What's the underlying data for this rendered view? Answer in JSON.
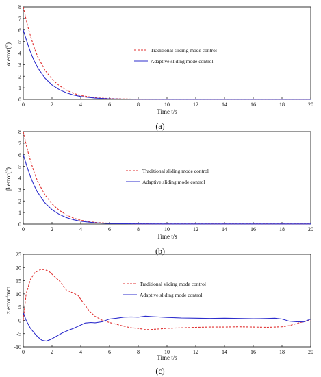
{
  "chart_data": [
    {
      "type": "line",
      "ylabel": "α error(°)",
      "xlabel": "Time t/s",
      "caption": "(a)",
      "xlim": [
        0,
        20
      ],
      "ylim": [
        0,
        8
      ],
      "xticks": [
        0,
        2,
        4,
        6,
        8,
        10,
        12,
        14,
        16,
        18,
        20
      ],
      "yticks": [
        0,
        1,
        2,
        3,
        4,
        5,
        6,
        7,
        8
      ],
      "legend_position": "center",
      "series": [
        {
          "name": "Traditional sliding mode control",
          "color": "#e03030",
          "dash": "dashed",
          "x": [
            0,
            0.25,
            0.5,
            0.75,
            1,
            1.5,
            2,
            2.5,
            3,
            3.5,
            4,
            5,
            6,
            7,
            8,
            10,
            12,
            14,
            16,
            18,
            20
          ],
          "y": [
            8,
            6.6,
            5.5,
            4.5,
            3.7,
            2.55,
            1.75,
            1.2,
            0.8,
            0.52,
            0.34,
            0.15,
            0.07,
            0.04,
            0.02,
            0.01,
            0.01,
            0.01,
            0.01,
            0.01,
            0.01
          ]
        },
        {
          "name": "Adaptive sliding mode control",
          "color": "#2c2ccc",
          "dash": "solid",
          "x": [
            0,
            0.25,
            0.5,
            0.75,
            1,
            1.5,
            2,
            2.5,
            3,
            3.5,
            4,
            5,
            6,
            7,
            8,
            10,
            12,
            14,
            16,
            18,
            20
          ],
          "y": [
            6,
            5.0,
            4.1,
            3.35,
            2.75,
            1.85,
            1.25,
            0.85,
            0.57,
            0.38,
            0.25,
            0.11,
            0.05,
            0.03,
            0.02,
            0.01,
            0.01,
            0.01,
            0.01,
            0.01,
            0.01
          ]
        }
      ]
    },
    {
      "type": "line",
      "ylabel": "β error(°)",
      "xlabel": "Time t/s",
      "caption": "(b)",
      "xlim": [
        0,
        20
      ],
      "ylim": [
        0,
        8
      ],
      "xticks": [
        0,
        2,
        4,
        6,
        8,
        10,
        12,
        14,
        16,
        18,
        20
      ],
      "yticks": [
        0,
        1,
        2,
        3,
        4,
        5,
        6,
        7,
        8
      ],
      "legend_position": "center",
      "series": [
        {
          "name": "Traditional sliding mode control",
          "color": "#e03030",
          "dash": "dashed",
          "x": [
            0,
            0.25,
            0.5,
            0.75,
            1,
            1.5,
            2,
            2.5,
            3,
            3.5,
            4,
            5,
            6,
            7,
            8,
            10,
            12,
            14,
            16,
            18,
            20
          ],
          "y": [
            8,
            6.6,
            5.5,
            4.5,
            3.7,
            2.55,
            1.75,
            1.2,
            0.8,
            0.52,
            0.34,
            0.15,
            0.07,
            0.04,
            0.02,
            0.01,
            0.01,
            0.01,
            0.01,
            0.01,
            0.01
          ]
        },
        {
          "name": "Adaptive sliding mode control",
          "color": "#2c2ccc",
          "dash": "solid",
          "x": [
            0,
            0.25,
            0.5,
            0.75,
            1,
            1.5,
            2,
            2.5,
            3,
            3.5,
            4,
            5,
            6,
            7,
            8,
            10,
            12,
            14,
            16,
            18,
            20
          ],
          "y": [
            6,
            5.0,
            4.1,
            3.35,
            2.75,
            1.85,
            1.25,
            0.85,
            0.57,
            0.38,
            0.25,
            0.11,
            0.05,
            0.03,
            0.02,
            0.01,
            0.01,
            0.01,
            0.01,
            0.01,
            0.01
          ]
        }
      ]
    },
    {
      "type": "line",
      "ylabel": "z error/mm",
      "xlabel": "Time t/s",
      "caption": "(c)",
      "xlim": [
        0,
        20
      ],
      "ylim": [
        -10,
        25
      ],
      "xticks": [
        0,
        2,
        4,
        6,
        8,
        10,
        12,
        14,
        16,
        18,
        20
      ],
      "yticks": [
        -10,
        -5,
        0,
        5,
        10,
        15,
        20,
        25
      ],
      "legend_position": "center-right",
      "series": [
        {
          "name": "Traditional sliding mode control",
          "color": "#e03030",
          "dash": "dashed",
          "x": [
            0,
            0.2,
            0.5,
            0.8,
            1.2,
            1.5,
            1.8,
            2.2,
            2.6,
            3.0,
            3.4,
            3.8,
            4.2,
            4.6,
            5.0,
            5.5,
            6.0,
            6.5,
            7.0,
            7.5,
            8.0,
            8.5,
            9.0,
            10,
            11,
            12,
            13,
            14,
            15,
            16,
            17,
            18,
            18.5,
            19,
            19.5,
            20
          ],
          "y": [
            0,
            10,
            15.5,
            18,
            19.3,
            19.2,
            18.5,
            16.5,
            14.5,
            11.5,
            10.5,
            9.5,
            6.5,
            3.5,
            1.5,
            0,
            -0.8,
            -1.5,
            -2.2,
            -2.8,
            -3.0,
            -3.5,
            -3.4,
            -3.0,
            -2.8,
            -2.6,
            -2.5,
            -2.5,
            -2.4,
            -2.5,
            -2.6,
            -2.4,
            -2.0,
            -1.2,
            -0.5,
            0
          ]
        },
        {
          "name": "Adaptive sliding mode control",
          "color": "#2c2ccc",
          "dash": "solid",
          "x": [
            0,
            0.2,
            0.5,
            0.8,
            1.0,
            1.3,
            1.6,
            1.9,
            2.3,
            2.7,
            3.1,
            3.5,
            3.9,
            4.3,
            4.7,
            5.0,
            5.5,
            6.0,
            6.5,
            7.0,
            7.5,
            8.0,
            8.5,
            9.0,
            10,
            11,
            12,
            13,
            14,
            15,
            16,
            17,
            17.5,
            18,
            18.5,
            19,
            19.5,
            20
          ],
          "y": [
            3,
            0,
            -3,
            -5,
            -6.2,
            -7.5,
            -7.8,
            -7.2,
            -6,
            -4.8,
            -3.8,
            -3.0,
            -2.0,
            -1.0,
            -0.8,
            -0.9,
            -0.5,
            0.5,
            0.8,
            1.2,
            1.3,
            1.2,
            1.6,
            1.4,
            1.1,
            0.9,
            0.8,
            0.7,
            0.8,
            0.7,
            0.6,
            0.7,
            0.8,
            0.5,
            -0.3,
            -0.5,
            -0.6,
            0.5
          ]
        }
      ]
    }
  ]
}
